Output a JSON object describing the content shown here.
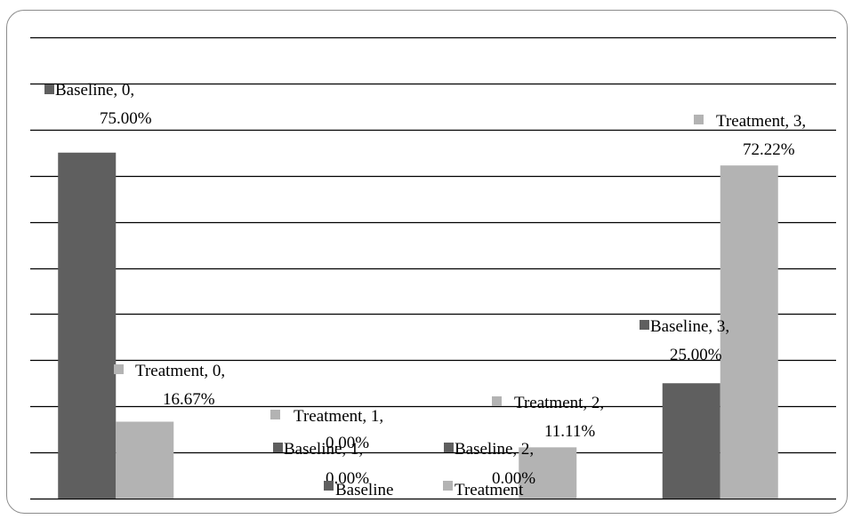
{
  "chart_data": {
    "type": "bar",
    "categories": [
      "0",
      "1",
      "2",
      "3"
    ],
    "series": [
      {
        "name": "Baseline",
        "values": [
          75.0,
          0.0,
          0.0,
          25.0
        ],
        "color": "#5f5f5f"
      },
      {
        "name": "Treatment",
        "values": [
          16.67,
          0.0,
          11.11,
          72.22
        ],
        "color": "#b3b3b3"
      }
    ],
    "data_labels": [
      {
        "series": 0,
        "category": 0,
        "line1": "Baseline, 0,",
        "line2": "75.00%"
      },
      {
        "series": 0,
        "category": 1,
        "line1": "Baseline, 1,",
        "line2": "0.00%"
      },
      {
        "series": 0,
        "category": 2,
        "line1": "Baseline, 2,",
        "line2": "0.00%"
      },
      {
        "series": 0,
        "category": 3,
        "line1": "Baseline, 3,",
        "line2": "25.00%"
      },
      {
        "series": 1,
        "category": 0,
        "line1": "Treatment, 0,",
        "line2": "16.67%"
      },
      {
        "series": 1,
        "category": 1,
        "line1": "Treatment, 1,",
        "line2": "0.00%"
      },
      {
        "series": 1,
        "category": 2,
        "line1": "Treatment, 2,",
        "line2": "11.11%"
      },
      {
        "series": 1,
        "category": 3,
        "line1": "Treatment, 3,",
        "line2": "72.22%"
      }
    ],
    "ylim": [
      0,
      100
    ],
    "y_gridline_step": 10,
    "grid": true,
    "legend": {
      "placement": "bottom",
      "entries": [
        "Baseline",
        "Treatment"
      ]
    }
  }
}
